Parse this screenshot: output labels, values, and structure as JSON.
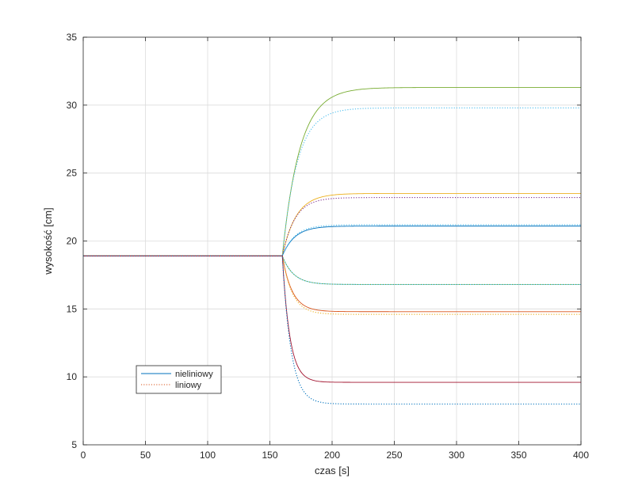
{
  "chart_data": {
    "type": "line",
    "xlabel": "czas [s]",
    "ylabel": "wysokość [cm]",
    "xlim": [
      0,
      400
    ],
    "ylim": [
      5,
      35
    ],
    "xticks": [
      0,
      50,
      100,
      150,
      200,
      250,
      300,
      350,
      400
    ],
    "yticks": [
      5,
      10,
      15,
      20,
      25,
      30,
      35
    ],
    "grid": true,
    "legend": {
      "placement": "lower-left",
      "entries": [
        {
          "label": "nieliniowy",
          "style": "solid",
          "color": "#0072bd"
        },
        {
          "label": "liniowy",
          "style": "dotted",
          "color": "#d95319"
        }
      ]
    },
    "step_time": 160,
    "initial_value": 18.9,
    "series": [
      {
        "kind": "nieliniowy",
        "color": "#77ac30",
        "dash": "solid",
        "final": 31.3,
        "tau": 14
      },
      {
        "kind": "liniowy",
        "color": "#4dbeee",
        "dash": "dotted",
        "final": 29.8,
        "tau": 12
      },
      {
        "kind": "nieliniowy",
        "color": "#edb120",
        "dash": "solid",
        "final": 23.5,
        "tau": 11
      },
      {
        "kind": "liniowy",
        "color": "#7e2f8e",
        "dash": "dotted",
        "final": 23.2,
        "tau": 10
      },
      {
        "kind": "nieliniowy",
        "color": "#0072bd",
        "dash": "solid",
        "final": 21.1,
        "tau": 10
      },
      {
        "kind": "liniowy",
        "color": "#4dbeee",
        "dash": "dotted",
        "final": 21.2,
        "tau": 10
      },
      {
        "kind": "nieliniowy",
        "color": "#4dbeee",
        "dash": "solid",
        "final": 16.8,
        "tau": 9
      },
      {
        "kind": "liniowy",
        "color": "#77ac30",
        "dash": "dotted",
        "final": 16.8,
        "tau": 9
      },
      {
        "kind": "nieliniowy",
        "color": "#d95319",
        "dash": "solid",
        "final": 14.8,
        "tau": 8
      },
      {
        "kind": "liniowy",
        "color": "#edb120",
        "dash": "dotted",
        "final": 14.6,
        "tau": 8
      },
      {
        "kind": "nieliniowy",
        "color": "#a2142f",
        "dash": "solid",
        "final": 9.6,
        "tau": 6
      },
      {
        "kind": "liniowy",
        "color": "#0072bd",
        "dash": "dotted",
        "final": 8.0,
        "tau": 7
      }
    ]
  }
}
